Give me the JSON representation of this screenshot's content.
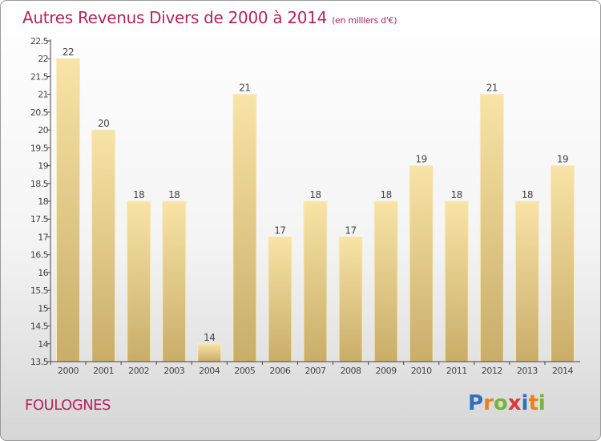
{
  "header": {
    "title": "Autres Revenus Divers de 2000 à 2014",
    "subtitle": "(en milliers d'€)"
  },
  "footer": {
    "commune": "FOULOGNES",
    "logo": [
      {
        "char": "P",
        "color": "#2f6fc0"
      },
      {
        "char": "r",
        "color": "#e8821e"
      },
      {
        "char": "o",
        "color": "#78b43a"
      },
      {
        "char": "x",
        "color": "#d93a3a"
      },
      {
        "char": "i",
        "color": "#2f6fc0"
      },
      {
        "char": "t",
        "color": "#e8821e"
      },
      {
        "char": "i",
        "color": "#78b43a"
      }
    ]
  },
  "colors": {
    "bar_light": "#f8e4a6",
    "bar_dark": "#c9ad69",
    "text": "#b3265a",
    "axis": "#444444"
  },
  "chart_data": {
    "type": "bar",
    "title": "Autres Revenus Divers de 2000 à 2014",
    "subtitle": "(en milliers d'€)",
    "categories": [
      "2000",
      "2001",
      "2002",
      "2003",
      "2004",
      "2005",
      "2006",
      "2007",
      "2008",
      "2009",
      "2010",
      "2011",
      "2012",
      "2013",
      "2014"
    ],
    "values": [
      22,
      20,
      18,
      18,
      14,
      21,
      17,
      18,
      17,
      18,
      19,
      18,
      21,
      18,
      19
    ],
    "ylim": [
      13.5,
      22.5
    ],
    "yticks": [
      "13.5",
      "14",
      "14.5",
      "15",
      "15.5",
      "16",
      "16.5",
      "17",
      "17.5",
      "18",
      "18.5",
      "19",
      "19.5",
      "20",
      "20.5",
      "21",
      "21.5",
      "22",
      "22.5"
    ],
    "grid": false,
    "legend": "none"
  }
}
